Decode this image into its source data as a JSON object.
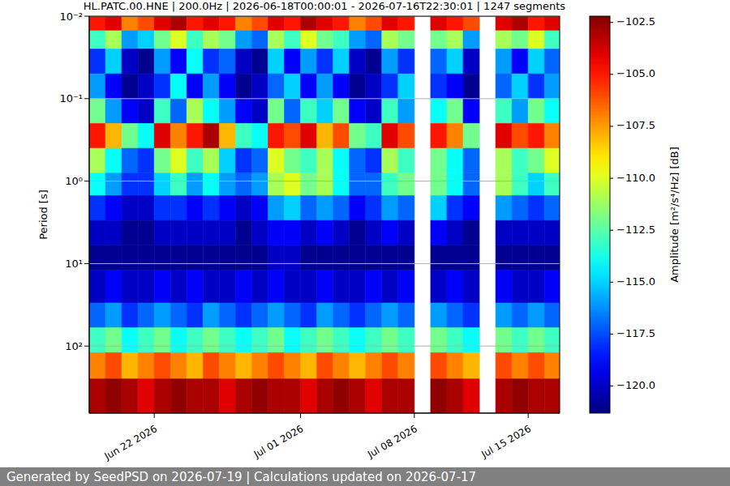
{
  "chart_data": {
    "type": "heatmap",
    "title": "HL.PATC.00.HNE | 200.0Hz | 2026-06-18T00:00:01 - 2026-07-16T22:30:01 | 1247 segments",
    "footer": "Generated by SeedPSD on 2026-07-19 | Calculations updated on 2026-07-17",
    "y_label": "Period [s]",
    "colorbar_label": "Amplitude [m²/s⁴/Hz] [dB]",
    "log": "y",
    "grid": true,
    "xlim": [
      "2026-06-18T00:00:01",
      "2026-07-16T22:30:01"
    ],
    "xticks": [
      {
        "value": "2026-06-22",
        "label": "Jun 22 2026"
      },
      {
        "value": "2026-07-01",
        "label": "Jul 01 2026"
      },
      {
        "value": "2026-07-08",
        "label": "Jul 08 2026"
      },
      {
        "value": "2026-07-15",
        "label": "Jul 15 2026"
      }
    ],
    "ylim": [
      0.01,
      650
    ],
    "yticks": [
      {
        "value": 0.01,
        "label": "10⁻²"
      },
      {
        "value": 0.1,
        "label": "10⁻¹"
      },
      {
        "value": 1,
        "label": "10⁰"
      },
      {
        "value": 10,
        "label": "10¹"
      },
      {
        "value": 100,
        "label": "10²"
      }
    ],
    "x": [
      "2026-06-18",
      "2026-06-19",
      "2026-06-20",
      "2026-06-21",
      "2026-06-22",
      "2026-06-23",
      "2026-06-24",
      "2026-06-25",
      "2026-06-26",
      "2026-06-27",
      "2026-06-28",
      "2026-06-29",
      "2026-06-30",
      "2026-07-01",
      "2026-07-02",
      "2026-07-03",
      "2026-07-04",
      "2026-07-05",
      "2026-07-06",
      "2026-07-07",
      "2026-07-08",
      "2026-07-09",
      "2026-07-10",
      "2026-07-11",
      "2026-07-12",
      "2026-07-13",
      "2026-07-14",
      "2026-07-15",
      "2026-07-16"
    ],
    "period_edges": [
      0.01,
      0.015,
      0.025,
      0.05,
      0.1,
      0.2,
      0.4,
      0.8,
      1.5,
      3,
      6,
      12,
      30,
      60,
      120,
      250,
      650
    ],
    "values": [
      [
        -105,
        -104,
        -107,
        -106,
        -104,
        -103,
        -105,
        -104,
        -105,
        -107,
        -106,
        -104,
        -105,
        -103,
        -104,
        -105,
        -107,
        -106,
        -104,
        -105,
        null,
        -104,
        -105,
        -106,
        null,
        -104,
        -103,
        -105,
        -104
      ],
      [
        -113,
        -111,
        -116,
        -115,
        -112,
        -110,
        -113,
        -111,
        -112,
        -116,
        -117,
        -111,
        -113,
        -110,
        -112,
        -113,
        -116,
        -117,
        -111,
        -112,
        null,
        -112,
        -111,
        -116,
        null,
        -111,
        -112,
        -110,
        -113
      ],
      [
        -118,
        -115,
        -120,
        -121,
        -116,
        -119,
        -114,
        -118,
        -117,
        -120,
        -121,
        -115,
        -119,
        -116,
        -118,
        -115,
        -120,
        -121,
        -116,
        -118,
        null,
        -117,
        -115,
        -120,
        null,
        -116,
        -119,
        -115,
        -117
      ],
      [
        -116,
        -119,
        -121,
        -120,
        -118,
        -114,
        -119,
        -116,
        -119,
        -121,
        -120,
        -117,
        -115,
        -119,
        -116,
        -119,
        -121,
        -120,
        -118,
        -115,
        null,
        -118,
        -119,
        -121,
        null,
        -117,
        -115,
        -118,
        -116
      ],
      [
        -112,
        -116,
        -119,
        -120,
        -113,
        -117,
        -111,
        -114,
        -116,
        -119,
        -120,
        -112,
        -117,
        -113,
        -115,
        -112,
        -119,
        -120,
        -113,
        -116,
        null,
        -114,
        -112,
        -119,
        null,
        -113,
        -116,
        -112,
        -114
      ],
      [
        -105,
        -108,
        -112,
        -114,
        -104,
        -107,
        -105,
        -103,
        -108,
        -113,
        -114,
        -105,
        -106,
        -104,
        -108,
        -106,
        -112,
        -113,
        -104,
        -106,
        null,
        -105,
        -107,
        -112,
        null,
        -104,
        -106,
        -105,
        -107
      ],
      [
        -111,
        -114,
        -117,
        -118,
        -112,
        -110,
        -113,
        -111,
        -115,
        -118,
        -117,
        -110,
        -112,
        -113,
        -111,
        -114,
        -117,
        -118,
        -111,
        -113,
        null,
        -112,
        -114,
        -117,
        null,
        -111,
        -113,
        -112,
        -110
      ],
      [
        -114,
        -116,
        -118,
        -118,
        -115,
        -113,
        -116,
        -114,
        -116,
        -117,
        -116,
        -111,
        -110,
        -112,
        -111,
        -114,
        -117,
        -117,
        -113,
        -112,
        null,
        -112,
        -114,
        -117,
        null,
        -111,
        -113,
        -115,
        -113
      ],
      [
        -118,
        -119,
        -120,
        -120,
        -118,
        -118,
        -119,
        -118,
        -119,
        -120,
        -119,
        -116,
        -115,
        -117,
        -116,
        -117,
        -119,
        -118,
        -116,
        -117,
        null,
        -115,
        -118,
        -119,
        null,
        -116,
        -117,
        -118,
        -117
      ],
      [
        -120,
        -120,
        -121,
        -121,
        -120,
        -120,
        -120,
        -120,
        -120,
        -121,
        -120,
        -119,
        -119,
        -120,
        -119,
        -120,
        -121,
        -120,
        -119,
        -120,
        null,
        -119,
        -120,
        -121,
        null,
        -120,
        -120,
        -120,
        -120
      ],
      [
        -121,
        -121,
        -121,
        -121,
        -121,
        -121,
        -121,
        -121,
        -121,
        -121,
        -121,
        -120,
        -120,
        -121,
        -121,
        -121,
        -121,
        -121,
        -121,
        -121,
        null,
        -121,
        -121,
        -121,
        null,
        -121,
        -121,
        -121,
        -121
      ],
      [
        -120,
        -119,
        -120,
        -120,
        -119,
        -120,
        -119,
        -120,
        -120,
        -119,
        -120,
        -119,
        -120,
        -120,
        -119,
        -120,
        -120,
        -119,
        -120,
        -119,
        null,
        -120,
        -119,
        -120,
        null,
        -119,
        -120,
        -120,
        -119
      ],
      [
        -117,
        -116,
        -118,
        -117,
        -116,
        -117,
        -118,
        -116,
        -117,
        -118,
        -117,
        -116,
        -117,
        -118,
        -116,
        -117,
        -118,
        -117,
        -116,
        -117,
        null,
        -116,
        -117,
        -118,
        null,
        -116,
        -117,
        -116,
        -117
      ],
      [
        -113,
        -112,
        -114,
        -113,
        -112,
        -114,
        -113,
        -112,
        -113,
        -114,
        -113,
        -112,
        -114,
        -113,
        -112,
        -113,
        -114,
        -113,
        -112,
        -113,
        null,
        -112,
        -113,
        -114,
        null,
        -112,
        -113,
        -112,
        -113
      ],
      [
        -107,
        -106,
        -108,
        -107,
        -106,
        -107,
        -108,
        -106,
        -107,
        -108,
        -107,
        -106,
        -107,
        -108,
        -106,
        -107,
        -108,
        -107,
        -106,
        -107,
        null,
        -106,
        -107,
        -108,
        null,
        -106,
        -107,
        -106,
        -107
      ],
      [
        -103,
        -102.5,
        -103,
        -104,
        -103,
        -102.5,
        -103,
        -103,
        -104,
        -103,
        -102.5,
        -103,
        -103,
        -104,
        -103,
        -102.5,
        -103,
        -104,
        -103,
        -103,
        null,
        -102.5,
        -103,
        -104,
        null,
        -103,
        -102.5,
        -103,
        -103
      ]
    ],
    "colorbar_range": [
      -121.3,
      -102.2
    ],
    "colorbar_ticks": [
      {
        "value": -120,
        "label": "−120.0"
      },
      {
        "value": -117.5,
        "label": "−117.5"
      },
      {
        "value": -115,
        "label": "−115.0"
      },
      {
        "value": -112.5,
        "label": "−112.5"
      },
      {
        "value": -110,
        "label": "−110.0"
      },
      {
        "value": -107.5,
        "label": "−107.5"
      },
      {
        "value": -105,
        "label": "−105.0"
      },
      {
        "value": -102.5,
        "label": "−102.5"
      }
    ]
  }
}
